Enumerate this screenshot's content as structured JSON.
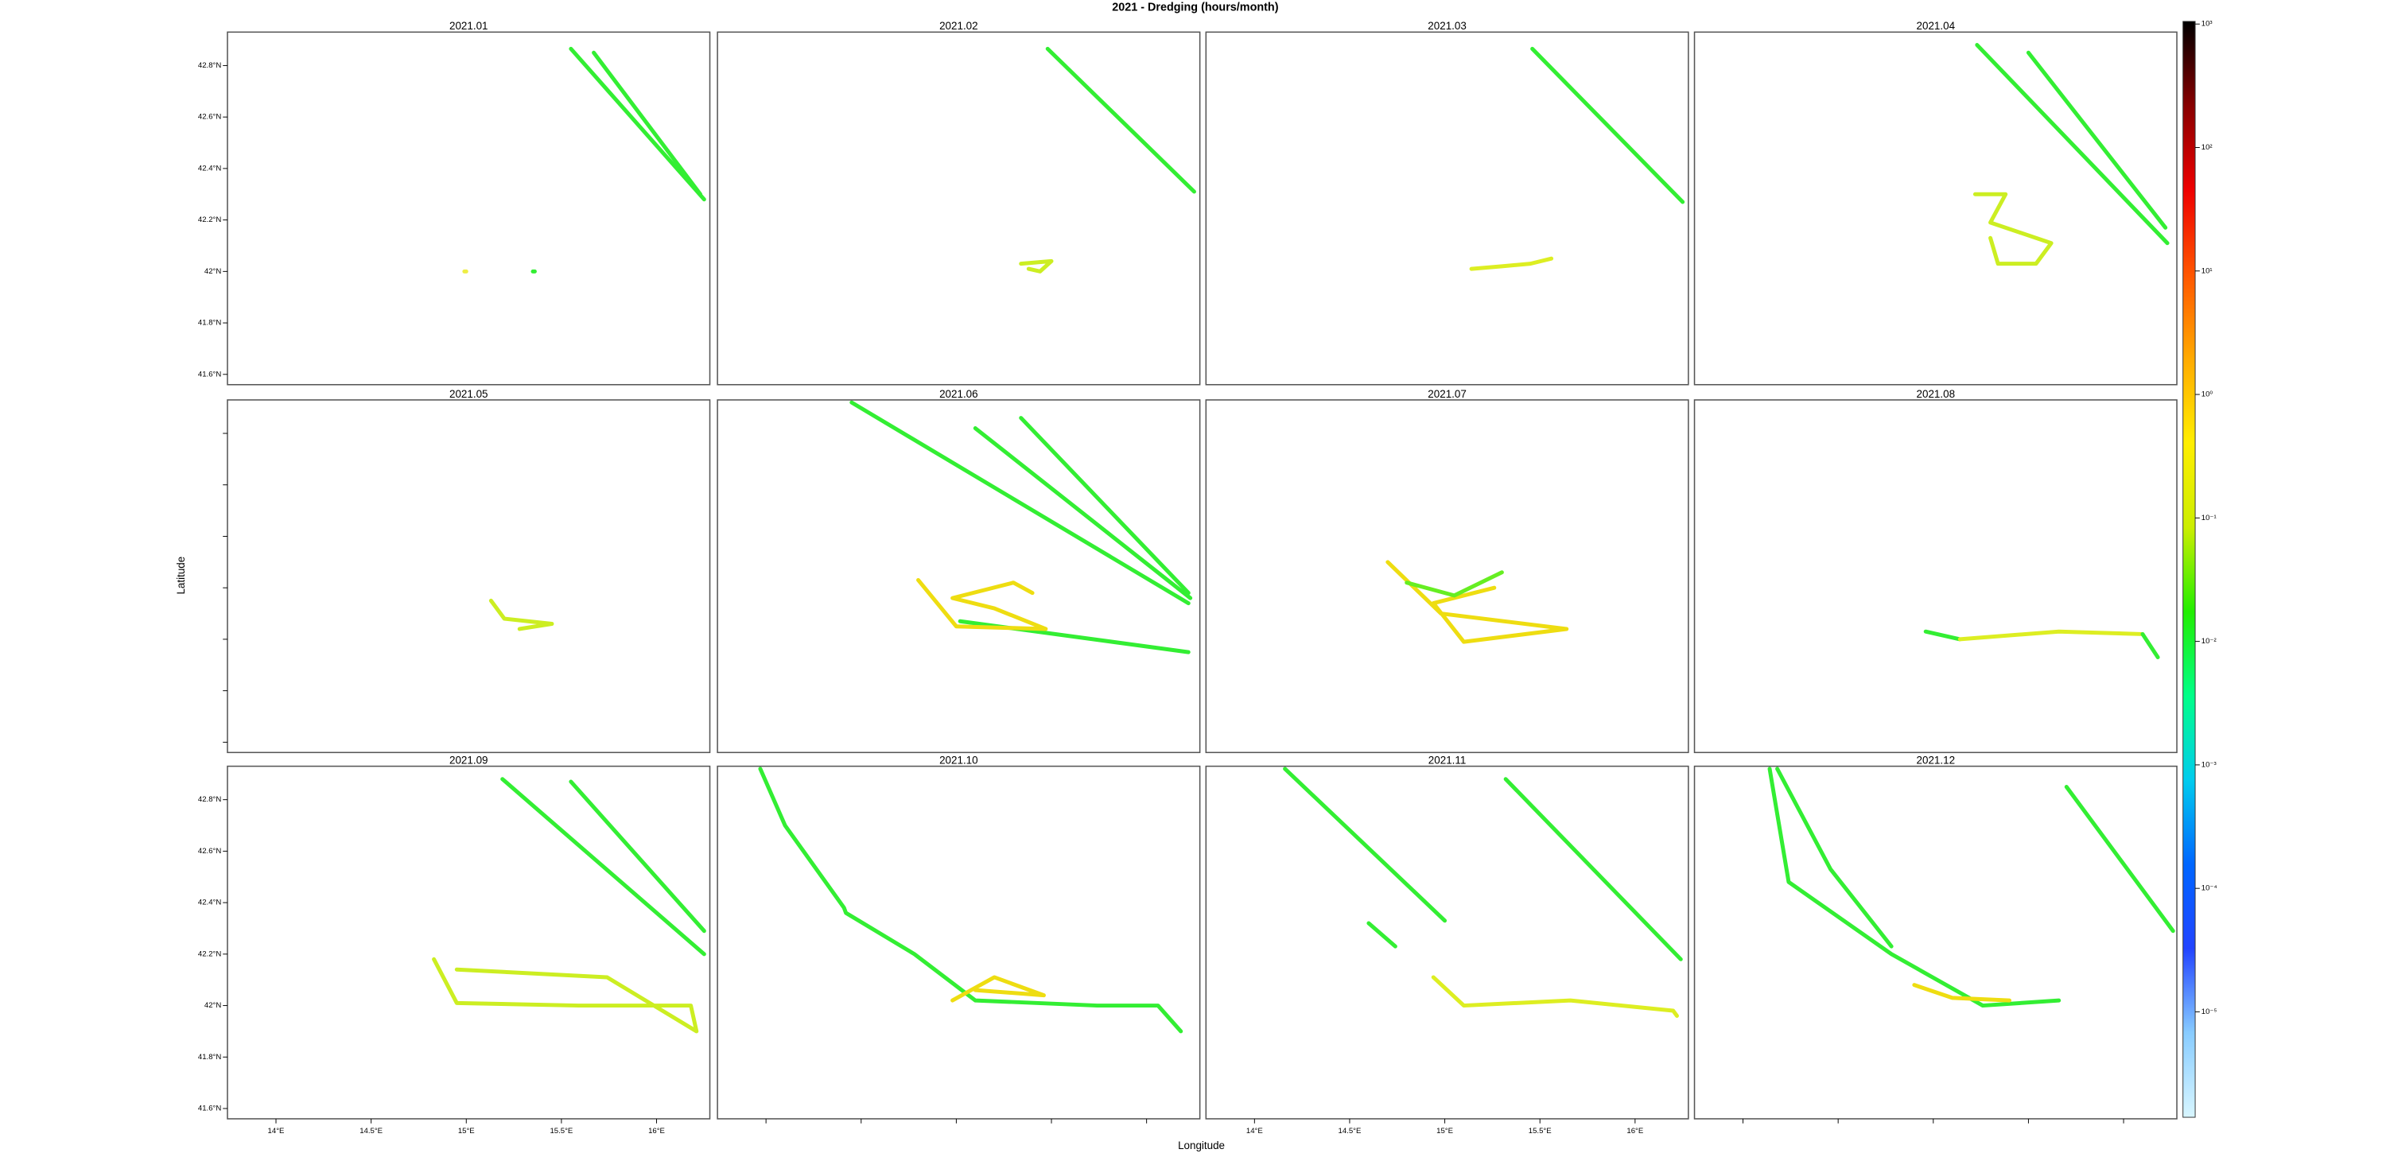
{
  "chart_data": {
    "type": "map",
    "title": "2021 - Dredging (hours/month)",
    "xlabel": "Longitude",
    "ylabel": "Latitude",
    "xlim": [
      13.745,
      16.28
    ],
    "ylim": [
      41.56,
      42.93
    ],
    "xticks": [
      {
        "value": 14,
        "label": "14°E"
      },
      {
        "value": 14.5,
        "label": "14.5°E"
      },
      {
        "value": 15,
        "label": "15°E"
      },
      {
        "value": 15.5,
        "label": "15.5°E"
      },
      {
        "value": 16,
        "label": "16°E"
      }
    ],
    "yticks": [
      {
        "value": 41.6,
        "label": "41.6°N"
      },
      {
        "value": 41.8,
        "label": "41.8°N"
      },
      {
        "value": 42,
        "label": "42°N"
      },
      {
        "value": 42.2,
        "label": "42.2°N"
      },
      {
        "value": 42.4,
        "label": "42.4°N"
      },
      {
        "value": 42.6,
        "label": "42.6°N"
      },
      {
        "value": 42.8,
        "label": "42.8°N"
      }
    ],
    "colorbar": {
      "log": true,
      "lim": [
        1.4e-06,
        1050
      ],
      "ticks": [
        {
          "value": 1e-05,
          "label": "10⁻⁵"
        },
        {
          "value": 0.0001,
          "label": "10⁻⁴"
        },
        {
          "value": 0.001,
          "label": "10⁻³"
        },
        {
          "value": 0.01,
          "label": "10⁻²"
        },
        {
          "value": 0.1,
          "label": "10⁻¹"
        },
        {
          "value": 1,
          "label": "10⁰"
        },
        {
          "value": 10,
          "label": "10¹"
        },
        {
          "value": 100,
          "label": "10²"
        },
        {
          "value": 1000,
          "label": "10³"
        }
      ],
      "colors": [
        "#d8f6ff",
        "#88ccff",
        "#2244ff",
        "#0066ff",
        "#00ccee",
        "#00ff88",
        "#22ee00",
        "#ccee00",
        "#ffee00",
        "#ffaa00",
        "#ff5500",
        "#ee0000",
        "#880000",
        "#000000"
      ]
    },
    "panels": [
      {
        "title": "2021.01",
        "tracks": [
          {
            "color": "#33ee33",
            "lon": [
              15.55,
              16.25
            ],
            "lat": [
              42.865,
              42.28
            ]
          },
          {
            "color": "#33ee33",
            "lon": [
              15.67,
              16.23
            ],
            "lat": [
              42.85,
              42.3
            ]
          },
          {
            "color": "#eeee44",
            "lon": [
              14.99,
              15.0
            ],
            "lat": [
              42.0,
              42.0
            ]
          },
          {
            "color": "#33ee33",
            "lon": [
              15.35,
              15.36
            ],
            "lat": [
              42.0,
              42.0
            ]
          }
        ]
      },
      {
        "title": "2021.02",
        "tracks": [
          {
            "color": "#33ee33",
            "lon": [
              15.48,
              16.25
            ],
            "lat": [
              42.865,
              42.31
            ]
          },
          {
            "color": "#ccee22",
            "lon": [
              15.34,
              15.5,
              15.44,
              15.38
            ],
            "lat": [
              42.03,
              42.04,
              42.0,
              42.01
            ]
          }
        ]
      },
      {
        "title": "2021.03",
        "tracks": [
          {
            "color": "#33ee33",
            "lon": [
              15.46,
              16.25
            ],
            "lat": [
              42.865,
              42.27
            ]
          },
          {
            "color": "#ddee22",
            "lon": [
              15.14,
              15.3,
              15.45,
              15.56
            ],
            "lat": [
              42.01,
              42.02,
              42.03,
              42.05
            ]
          }
        ]
      },
      {
        "title": "2021.04",
        "tracks": [
          {
            "color": "#33ee33",
            "lon": [
              15.23,
              16.23
            ],
            "lat": [
              42.88,
              42.11
            ]
          },
          {
            "color": "#33ee33",
            "lon": [
              15.5,
              16.22
            ],
            "lat": [
              42.85,
              42.17
            ]
          },
          {
            "color": "#ccee22",
            "lon": [
              15.22,
              15.38,
              15.3,
              15.62,
              15.54,
              15.34,
              15.3
            ],
            "lat": [
              42.3,
              42.3,
              42.19,
              42.11,
              42.03,
              42.03,
              42.13
            ]
          }
        ]
      },
      {
        "title": "2021.05",
        "tracks": [
          {
            "color": "#ccee22",
            "lon": [
              15.13,
              15.2,
              15.45,
              15.28
            ],
            "lat": [
              42.15,
              42.08,
              42.06,
              42.04
            ]
          }
        ]
      },
      {
        "title": "2021.06",
        "tracks": [
          {
            "color": "#33ee33",
            "lon": [
              14.45,
              16.22
            ],
            "lat": [
              42.92,
              42.14
            ]
          },
          {
            "color": "#33ee33",
            "lon": [
              15.1,
              16.23
            ],
            "lat": [
              42.82,
              42.16
            ]
          },
          {
            "color": "#33ee33",
            "lon": [
              15.34,
              16.22
            ],
            "lat": [
              42.86,
              42.18
            ]
          },
          {
            "color": "#33ee33",
            "lon": [
              15.02,
              16.22
            ],
            "lat": [
              42.07,
              41.95
            ]
          },
          {
            "color": "#eedd11",
            "lon": [
              14.8,
              15.0,
              15.47,
              15.2,
              14.98,
              15.3,
              15.4
            ],
            "lat": [
              42.23,
              42.05,
              42.04,
              42.12,
              42.16,
              42.22,
              42.18
            ]
          }
        ]
      },
      {
        "title": "2021.07",
        "tracks": [
          {
            "color": "#eedd11",
            "lon": [
              14.7,
              14.98,
              15.64,
              15.1,
              14.94,
              15.26
            ],
            "lat": [
              42.3,
              42.1,
              42.04,
              41.99,
              42.14,
              42.2
            ]
          },
          {
            "color": "#66ee22",
            "lon": [
              14.8,
              15.05,
              15.3
            ],
            "lat": [
              42.22,
              42.17,
              42.26
            ]
          }
        ]
      },
      {
        "title": "2021.08",
        "tracks": [
          {
            "color": "#33ee33",
            "lon": [
              14.96,
              15.14
            ],
            "lat": [
              42.03,
              42.0
            ]
          },
          {
            "color": "#ddee22",
            "lon": [
              15.14,
              15.66,
              16.1
            ],
            "lat": [
              42.0,
              42.03,
              42.02
            ]
          },
          {
            "color": "#33ee33",
            "lon": [
              16.1,
              16.18
            ],
            "lat": [
              42.02,
              41.93
            ]
          }
        ]
      },
      {
        "title": "2021.09",
        "tracks": [
          {
            "color": "#33ee33",
            "lon": [
              15.19,
              16.25
            ],
            "lat": [
              42.88,
              42.2
            ]
          },
          {
            "color": "#33ee33",
            "lon": [
              15.55,
              16.25
            ],
            "lat": [
              42.87,
              42.29
            ]
          },
          {
            "color": "#ccee22",
            "lon": [
              14.83,
              14.95,
              15.59,
              16.18,
              16.21,
              15.74,
              14.95
            ],
            "lat": [
              42.18,
              42.01,
              42.0,
              42.0,
              41.9,
              42.11,
              42.14
            ]
          }
        ]
      },
      {
        "title": "2021.10",
        "tracks": [
          {
            "color": "#33ee33",
            "lon": [
              13.97,
              14.1,
              14.41,
              14.42,
              14.78,
              15.1,
              15.74,
              16.06,
              16.18
            ],
            "lat": [
              42.92,
              42.7,
              42.38,
              42.36,
              42.2,
              42.02,
              42.0,
              42.0,
              41.9
            ]
          },
          {
            "color": "#eedd11",
            "lon": [
              14.98,
              15.2,
              15.46,
              15.1
            ],
            "lat": [
              42.02,
              42.11,
              42.04,
              42.06
            ]
          }
        ]
      },
      {
        "title": "2021.11",
        "tracks": [
          {
            "color": "#33ee33",
            "lon": [
              14.16,
              15.0
            ],
            "lat": [
              42.92,
              42.33
            ]
          },
          {
            "color": "#33ee33",
            "lon": [
              15.32,
              16.24
            ],
            "lat": [
              42.88,
              42.18
            ]
          },
          {
            "color": "#33ee33",
            "lon": [
              14.6,
              14.74
            ],
            "lat": [
              42.32,
              42.23
            ]
          },
          {
            "color": "#ddee22",
            "lon": [
              14.94,
              15.1,
              15.66,
              16.2,
              16.22
            ],
            "lat": [
              42.11,
              42.0,
              42.02,
              41.98,
              41.96
            ]
          }
        ]
      },
      {
        "title": "2021.12",
        "tracks": [
          {
            "color": "#33ee33",
            "lon": [
              14.14,
              14.24,
              14.78,
              15.26,
              15.66
            ],
            "lat": [
              42.92,
              42.48,
              42.2,
              42.0,
              42.02
            ]
          },
          {
            "color": "#33ee33",
            "lon": [
              14.18,
              14.46,
              14.78
            ],
            "lat": [
              42.92,
              42.53,
              42.23
            ]
          },
          {
            "color": "#33ee33",
            "lon": [
              15.7,
              16.26
            ],
            "lat": [
              42.85,
              42.29
            ]
          },
          {
            "color": "#eedd11",
            "lon": [
              14.9,
              15.1,
              15.4
            ],
            "lat": [
              42.08,
              42.03,
              42.02
            ]
          }
        ]
      }
    ]
  }
}
